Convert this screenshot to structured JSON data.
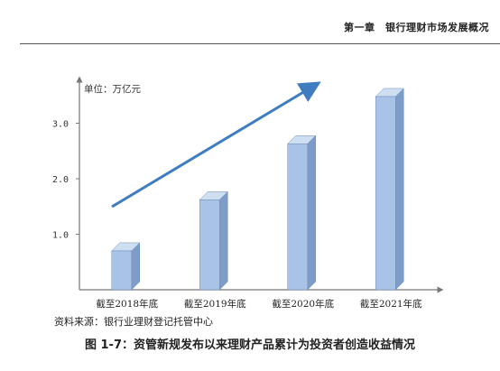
{
  "header": {
    "chapter_title": "第一章　银行理财市场发展概况"
  },
  "chart_data": {
    "type": "bar",
    "title": "",
    "ylabel": "单位：万亿元",
    "xlabel": "",
    "categories": [
      "截至2018年底",
      "截至2019年底",
      "截至2020年底",
      "截至2021年底"
    ],
    "values": [
      0.7,
      1.62,
      2.63,
      3.48
    ],
    "ylim": [
      0,
      4.0
    ],
    "yticks": [
      "1.0",
      "2.0",
      "3.0"
    ],
    "ytick_values": [
      1.0,
      2.0,
      3.0
    ],
    "grid": false,
    "bar_style": "3d",
    "trend_arrow": true,
    "colors": {
      "bar_front": "#a9c3e6",
      "bar_side": "#7d9cc8",
      "bar_top": "#cfdff2",
      "arrow": "#3f7cc0",
      "axis": "#777777"
    }
  },
  "source": {
    "text": "资料来源：银行业理财登记托管中心"
  },
  "caption": {
    "text": "图 1-7：资管新规发布以来理财产品累计为投资者创造收益情况"
  }
}
